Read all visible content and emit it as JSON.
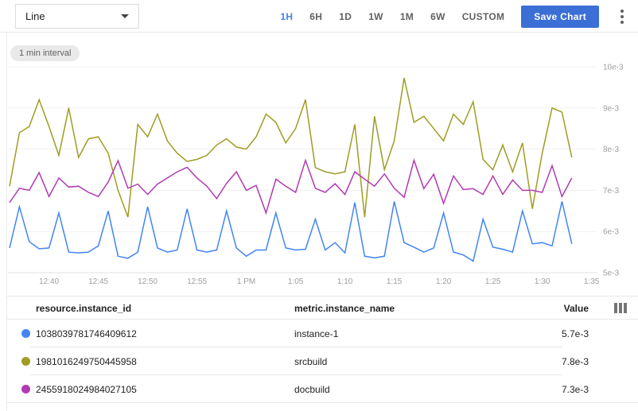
{
  "toolbar": {
    "chart_type_value": "Line",
    "time_ranges": [
      {
        "label": "1H",
        "active": true
      },
      {
        "label": "6H",
        "active": false
      },
      {
        "label": "1D",
        "active": false
      },
      {
        "label": "1W",
        "active": false
      },
      {
        "label": "1M",
        "active": false
      },
      {
        "label": "6W",
        "active": false
      },
      {
        "label": "CUSTOM",
        "active": false
      }
    ],
    "save_button_label": "Save Chart"
  },
  "icons": {
    "select_caret": "chevron-down-icon",
    "overflow_menu": "kebab-menu-icon",
    "table_columns": "view-column-icon"
  },
  "colors": {
    "accent_blue": "#4285f4",
    "save_button": "#3b6fd6",
    "series_blue": "#4285f4",
    "series_olive": "#9e9d24",
    "series_magenta": "#b13bb2",
    "axis_text": "#9e9e9e",
    "gridline": "#f1f1f1"
  },
  "chart_data": {
    "type": "line",
    "interval_badge": "1 min interval",
    "grid": true,
    "legend_position": "table-below",
    "y_axis_side": "right",
    "ylim_e3": [
      5,
      10
    ],
    "y_ticks": [
      {
        "label": "10e-3",
        "value": 10
      },
      {
        "label": "9e-3",
        "value": 9
      },
      {
        "label": "8e-3",
        "value": 8
      },
      {
        "label": "7e-3",
        "value": 7
      },
      {
        "label": "6e-3",
        "value": 6
      },
      {
        "label": "5e-3",
        "value": 5
      }
    ],
    "x_ticks": [
      {
        "label": "12:40",
        "minute": 4
      },
      {
        "label": "12:45",
        "minute": 9
      },
      {
        "label": "12:50",
        "minute": 14
      },
      {
        "label": "12:55",
        "minute": 19
      },
      {
        "label": "1 PM",
        "minute": 24
      },
      {
        "label": "1:05",
        "minute": 29
      },
      {
        "label": "1:10",
        "minute": 34
      },
      {
        "label": "1:15",
        "minute": 39
      },
      {
        "label": "1:20",
        "minute": 44
      },
      {
        "label": "1:25",
        "minute": 49
      },
      {
        "label": "1:30",
        "minute": 54
      },
      {
        "label": "1:35",
        "minute": 59
      }
    ],
    "x": [
      "12:36",
      "12:37",
      "12:38",
      "12:39",
      "12:40",
      "12:41",
      "12:42",
      "12:43",
      "12:44",
      "12:45",
      "12:46",
      "12:47",
      "12:48",
      "12:49",
      "12:50",
      "12:51",
      "12:52",
      "12:53",
      "12:54",
      "12:55",
      "12:56",
      "12:57",
      "12:58",
      "12:59",
      "1:00",
      "1:01",
      "1:02",
      "1:03",
      "1:04",
      "1:05",
      "1:06",
      "1:07",
      "1:08",
      "1:09",
      "1:10",
      "1:11",
      "1:12",
      "1:13",
      "1:14",
      "1:15",
      "1:16",
      "1:17",
      "1:18",
      "1:19",
      "1:20",
      "1:21",
      "1:22",
      "1:23",
      "1:24",
      "1:25",
      "1:26",
      "1:27",
      "1:28",
      "1:29",
      "1:30",
      "1:31",
      "1:32",
      "1:33"
    ],
    "series": [
      {
        "name": "instance-1",
        "color": "#4285f4",
        "values_e3": [
          5.6,
          6.6,
          5.75,
          5.58,
          5.6,
          6.45,
          5.5,
          5.48,
          5.5,
          5.65,
          6.5,
          5.4,
          5.35,
          5.5,
          6.6,
          5.6,
          5.5,
          5.55,
          6.55,
          5.55,
          5.5,
          5.55,
          6.5,
          5.6,
          5.4,
          5.55,
          5.55,
          6.45,
          5.6,
          5.55,
          5.57,
          6.3,
          5.55,
          5.73,
          5.48,
          6.7,
          5.4,
          5.36,
          5.4,
          6.73,
          5.73,
          5.62,
          5.5,
          5.6,
          6.45,
          5.5,
          5.43,
          5.28,
          6.3,
          5.62,
          5.57,
          5.5,
          6.5,
          5.7,
          5.73,
          5.65,
          6.73,
          5.7
        ]
      },
      {
        "name": "srcbuild",
        "color": "#9e9d24",
        "values_e3": [
          7.1,
          8.4,
          8.55,
          9.2,
          8.55,
          7.85,
          9.0,
          7.8,
          8.25,
          8.3,
          7.9,
          7.0,
          6.35,
          8.6,
          8.3,
          8.85,
          8.2,
          7.9,
          7.7,
          7.75,
          7.85,
          8.1,
          8.25,
          8.05,
          8.0,
          8.3,
          8.85,
          8.65,
          8.15,
          8.5,
          9.2,
          7.55,
          7.45,
          7.4,
          7.45,
          8.6,
          6.35,
          8.8,
          7.5,
          8.2,
          9.73,
          8.65,
          8.8,
          8.5,
          8.2,
          8.85,
          8.6,
          9.15,
          7.75,
          7.5,
          8.1,
          7.45,
          8.15,
          6.55,
          7.9,
          9.0,
          8.9,
          7.8
        ]
      },
      {
        "name": "docbuild",
        "color": "#b13bb2",
        "values_e3": [
          6.7,
          7.05,
          7.0,
          7.43,
          6.85,
          7.3,
          7.08,
          7.1,
          6.95,
          6.85,
          7.2,
          7.72,
          7.05,
          7.15,
          6.9,
          7.15,
          7.3,
          7.45,
          7.56,
          7.3,
          7.1,
          6.8,
          7.17,
          7.45,
          7.0,
          7.12,
          6.45,
          7.27,
          7.1,
          6.95,
          7.73,
          7.05,
          6.95,
          7.16,
          6.9,
          7.45,
          7.27,
          7.1,
          7.4,
          7.05,
          6.83,
          7.73,
          7.04,
          7.39,
          6.68,
          7.35,
          7.02,
          7.04,
          6.9,
          7.35,
          6.9,
          7.25,
          7.0,
          7.0,
          6.95,
          7.6,
          6.85,
          7.3
        ]
      }
    ]
  },
  "table": {
    "columns": [
      "resource.instance_id",
      "metric.instance_name",
      "Value"
    ],
    "rows": [
      {
        "color": "#4285f4",
        "instance_id": "1038039781746409612",
        "instance_name": "instance-1",
        "value": "5.7e-3"
      },
      {
        "color": "#9e9d24",
        "instance_id": "1981016249750445958",
        "instance_name": "srcbuild",
        "value": "7.8e-3"
      },
      {
        "color": "#b13bb2",
        "instance_id": "2455918024984027105",
        "instance_name": "docbuild",
        "value": "7.3e-3"
      }
    ]
  }
}
